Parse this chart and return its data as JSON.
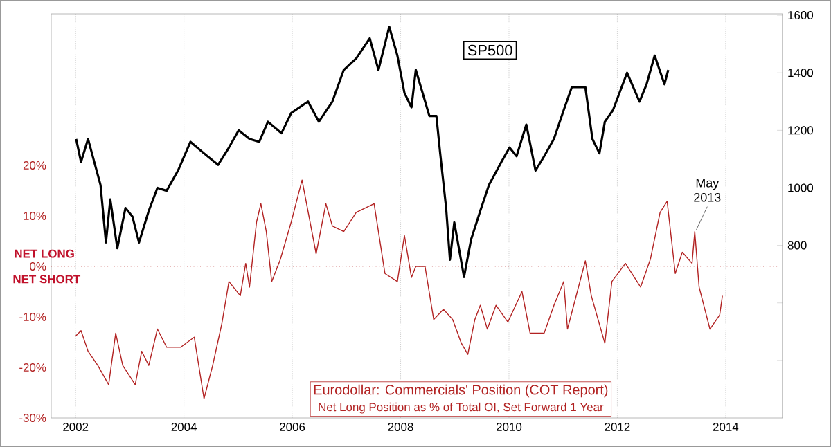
{
  "chart_data": {
    "type": "line",
    "xlim": [
      2001.55,
      2015.05
    ],
    "xticks": [
      2002,
      2004,
      2006,
      2008,
      2010,
      2012,
      2014
    ],
    "ylim": [
      -30,
      50
    ],
    "yticks": [
      {
        "value": -30,
        "label": "-30%"
      },
      {
        "value": -20,
        "label": "-20%"
      },
      {
        "value": -10,
        "label": "-10%"
      },
      {
        "value": 0,
        "label": "0%"
      },
      {
        "value": 10,
        "label": "10%"
      },
      {
        "value": 20,
        "label": "20%"
      }
    ],
    "y2lim": [
      200,
      1605
    ],
    "y2ticks": [
      {
        "value": 400,
        "label": null
      },
      {
        "value": 600,
        "label": null
      },
      800,
      1000,
      1200,
      1400,
      1600
    ],
    "grid": "x",
    "line_style": "solid",
    "series": [
      {
        "name": "SP500",
        "color": "#000000",
        "axis": "y2",
        "x": [
          2002.01,
          2002.1,
          2002.23,
          2002.33,
          2002.46,
          2002.56,
          2002.64,
          2002.77,
          2002.92,
          2003.05,
          2003.17,
          2003.35,
          2003.51,
          2003.68,
          2003.89,
          2004.12,
          2004.37,
          2004.63,
          2004.83,
          2005.01,
          2005.21,
          2005.39,
          2005.55,
          2005.8,
          2005.98,
          2006.29,
          2006.49,
          2006.74,
          2006.95,
          2007.18,
          2007.43,
          2007.59,
          2007.79,
          2007.94,
          2008.07,
          2008.2,
          2008.28,
          2008.53,
          2008.66,
          2008.73,
          2008.84,
          2008.91,
          2008.99,
          2009.17,
          2009.3,
          2009.47,
          2009.63,
          2009.86,
          2010.01,
          2010.14,
          2010.32,
          2010.49,
          2010.65,
          2010.83,
          2011.01,
          2011.16,
          2011.41,
          2011.54,
          2011.67,
          2011.77,
          2011.92,
          2012.18,
          2012.41,
          2012.54,
          2012.69,
          2012.87,
          2012.94
        ],
        "values": [
          1170,
          1090,
          1170,
          1100,
          1010,
          810,
          960,
          790,
          930,
          900,
          810,
          920,
          1000,
          990,
          1060,
          1160,
          1120,
          1080,
          1140,
          1200,
          1170,
          1160,
          1230,
          1190,
          1260,
          1300,
          1230,
          1300,
          1410,
          1450,
          1520,
          1410,
          1560,
          1460,
          1330,
          1280,
          1410,
          1250,
          1250,
          1120,
          930,
          750,
          880,
          690,
          820,
          920,
          1010,
          1090,
          1140,
          1110,
          1220,
          1060,
          1110,
          1170,
          1270,
          1350,
          1350,
          1170,
          1120,
          1230,
          1270,
          1400,
          1300,
          1360,
          1460,
          1360,
          1410
        ]
      },
      {
        "name": "Eurodollar: Commercials' Position (COT Report)",
        "color": "#b22222",
        "x": [
          2002.0,
          2002.1,
          2002.23,
          2002.41,
          2002.61,
          2002.74,
          2002.87,
          2003.1,
          2003.22,
          2003.35,
          2003.51,
          2003.68,
          2003.94,
          2004.19,
          2004.37,
          2004.53,
          2004.7,
          2004.83,
          2005.04,
          2005.14,
          2005.21,
          2005.34,
          2005.42,
          2005.52,
          2005.62,
          2005.78,
          2005.98,
          2006.18,
          2006.44,
          2006.62,
          2006.74,
          2006.95,
          2007.18,
          2007.51,
          2007.71,
          2007.94,
          2008.07,
          2008.2,
          2008.28,
          2008.45,
          2008.61,
          2008.79,
          2008.96,
          2009.12,
          2009.24,
          2009.37,
          2009.47,
          2009.6,
          2009.76,
          2009.98,
          2010.24,
          2010.39,
          2010.65,
          2010.83,
          2011.01,
          2011.08,
          2011.41,
          2011.52,
          2011.77,
          2011.9,
          2012.15,
          2012.43,
          2012.61,
          2012.79,
          2012.92,
          2013.07,
          2013.2,
          2013.38,
          2013.43,
          2013.51,
          2013.71,
          2013.89,
          2013.94
        ],
        "values": [
          -13.8,
          -12.7,
          -16.8,
          -19.6,
          -23.4,
          -13.2,
          -19.6,
          -23.4,
          -16.8,
          -19.6,
          -12.4,
          -16.0,
          -16.0,
          -14.0,
          -26.2,
          -19.6,
          -11.3,
          -3.0,
          -5.8,
          0.6,
          -4.1,
          8.8,
          12.4,
          6.9,
          -3.0,
          1.4,
          8.8,
          17.1,
          2.5,
          12.4,
          8.0,
          6.9,
          10.7,
          12.4,
          -1.4,
          -3.0,
          6.1,
          -2.2,
          0,
          0,
          -10.5,
          -8.5,
          -10.5,
          -15.2,
          -17.4,
          -10.5,
          -7.7,
          -12.4,
          -7.7,
          -11.0,
          -5.0,
          -13.2,
          -13.2,
          -7.7,
          -3.0,
          -12.4,
          1.1,
          -5.8,
          -15.2,
          -3.0,
          0.6,
          -4.1,
          1.4,
          10.7,
          12.9,
          -1.4,
          2.8,
          0.6,
          6.9,
          -4.1,
          -12.4,
          -9.6,
          -5.8
        ]
      }
    ],
    "ref_lines": [
      {
        "axis": "y",
        "value": 0,
        "color": "#b22222",
        "line_style": "dotted"
      }
    ],
    "annotations": [
      "NET LONG",
      "NET SHORT",
      {
        "text": "May 2013",
        "x": 2013.43,
        "y": 6.9
      },
      "Net Long Position as % of Total OI, Set Forward 1 Year"
    ]
  }
}
